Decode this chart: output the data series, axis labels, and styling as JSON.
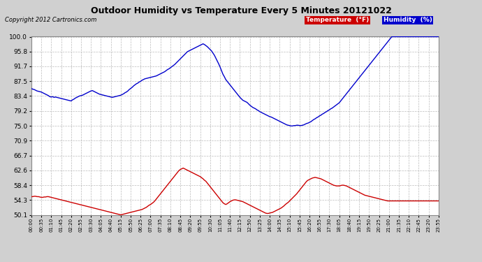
{
  "title": "Outdoor Humidity vs Temperature Every 5 Minutes 20121022",
  "copyright": "Copyright 2012 Cartronics.com",
  "legend_temp": "Temperature  (°F)",
  "legend_hum": "Humidity  (%)",
  "bg_color": "#d0d0d0",
  "plot_bg_color": "#ffffff",
  "grid_color": "#bbbbbb",
  "temp_color": "#cc0000",
  "hum_color": "#0000cc",
  "ylim_min": 50.1,
  "ylim_max": 100.0,
  "yticks": [
    50.1,
    54.3,
    58.4,
    62.6,
    66.7,
    70.9,
    75.0,
    79.2,
    83.4,
    87.5,
    91.7,
    95.8,
    100.0
  ],
  "num_points": 288,
  "xtick_labels": [
    "00:00",
    "00:35",
    "01:10",
    "01:45",
    "02:20",
    "02:55",
    "03:30",
    "04:05",
    "04:40",
    "05:15",
    "05:50",
    "06:25",
    "07:00",
    "07:35",
    "08:10",
    "08:45",
    "09:20",
    "09:55",
    "10:30",
    "11:05",
    "11:40",
    "12:15",
    "12:50",
    "13:25",
    "14:00",
    "14:35",
    "15:10",
    "15:45",
    "16:20",
    "16:55",
    "17:30",
    "18:05",
    "18:40",
    "19:15",
    "19:50",
    "20:25",
    "21:00",
    "21:35",
    "22:10",
    "22:45",
    "23:20",
    "23:55"
  ],
  "humidity_data": [
    85.5,
    85.3,
    85.2,
    85.0,
    84.8,
    84.7,
    84.6,
    84.5,
    84.3,
    84.1,
    83.9,
    83.7,
    83.5,
    83.2,
    83.1,
    83.2,
    83.0,
    83.1,
    83.0,
    82.9,
    82.8,
    82.7,
    82.6,
    82.5,
    82.4,
    82.3,
    82.2,
    82.1,
    82.0,
    82.3,
    82.5,
    82.8,
    83.0,
    83.2,
    83.4,
    83.5,
    83.6,
    83.8,
    84.0,
    84.2,
    84.4,
    84.6,
    84.8,
    84.9,
    84.7,
    84.5,
    84.3,
    84.1,
    83.9,
    83.8,
    83.7,
    83.6,
    83.5,
    83.4,
    83.3,
    83.2,
    83.1,
    83.0,
    83.1,
    83.2,
    83.3,
    83.4,
    83.5,
    83.6,
    83.8,
    84.0,
    84.3,
    84.5,
    84.8,
    85.2,
    85.5,
    85.8,
    86.2,
    86.5,
    86.8,
    87.0,
    87.3,
    87.5,
    87.8,
    88.0,
    88.2,
    88.3,
    88.4,
    88.5,
    88.6,
    88.7,
    88.8,
    88.9,
    89.0,
    89.2,
    89.4,
    89.6,
    89.8,
    90.0,
    90.2,
    90.5,
    90.8,
    91.0,
    91.3,
    91.6,
    91.9,
    92.2,
    92.6,
    93.0,
    93.4,
    93.8,
    94.2,
    94.6,
    95.0,
    95.4,
    95.8,
    96.0,
    96.2,
    96.4,
    96.6,
    96.8,
    97.0,
    97.2,
    97.4,
    97.6,
    97.8,
    98.0,
    97.8,
    97.5,
    97.2,
    96.8,
    96.4,
    96.0,
    95.4,
    94.8,
    94.0,
    93.2,
    92.4,
    91.5,
    90.5,
    89.5,
    88.8,
    88.0,
    87.5,
    87.0,
    86.5,
    86.0,
    85.5,
    85.0,
    84.5,
    84.0,
    83.5,
    83.0,
    82.6,
    82.2,
    82.0,
    81.8,
    81.6,
    81.2,
    80.8,
    80.5,
    80.2,
    80.0,
    79.8,
    79.5,
    79.3,
    79.0,
    78.8,
    78.6,
    78.4,
    78.2,
    78.0,
    77.8,
    77.6,
    77.5,
    77.3,
    77.1,
    76.9,
    76.7,
    76.5,
    76.3,
    76.1,
    75.9,
    75.7,
    75.5,
    75.3,
    75.2,
    75.1,
    75.0,
    75.0,
    75.1,
    75.1,
    75.2,
    75.2,
    75.1,
    75.1,
    75.2,
    75.3,
    75.5,
    75.7,
    75.8,
    76.0,
    76.2,
    76.5,
    76.8,
    77.0,
    77.3,
    77.5,
    77.8,
    78.0,
    78.3,
    78.5,
    78.8,
    79.0,
    79.3,
    79.5,
    79.8,
    80.0,
    80.3,
    80.6,
    80.9,
    81.2,
    81.5,
    82.0,
    82.5,
    83.0,
    83.5,
    84.0,
    84.5,
    85.0,
    85.5,
    86.0,
    86.5,
    87.0,
    87.5,
    88.0,
    88.5,
    89.0,
    89.5,
    90.0,
    90.5,
    91.0,
    91.5,
    92.0,
    92.5,
    93.0,
    93.5,
    94.0,
    94.5,
    95.0,
    95.5,
    96.0,
    96.5,
    97.0,
    97.5,
    98.0,
    98.5,
    99.0,
    99.5,
    100.0,
    100.0,
    100.0,
    100.0,
    100.0,
    100.0,
    100.0,
    100.0,
    100.0,
    100.0,
    100.0,
    100.0,
    100.0,
    100.0,
    100.0,
    100.0,
    100.0,
    100.0,
    100.0,
    100.0,
    100.0,
    100.0,
    100.0,
    100.0,
    100.0,
    100.0,
    100.0,
    100.0,
    100.0,
    100.0,
    100.0,
    100.0,
    100.0,
    100.0
  ],
  "temp_data": [
    55.2,
    55.2,
    55.3,
    55.3,
    55.2,
    55.2,
    55.1,
    55.0,
    55.0,
    55.1,
    55.1,
    55.2,
    55.2,
    55.1,
    55.0,
    54.9,
    54.8,
    54.7,
    54.6,
    54.5,
    54.4,
    54.3,
    54.2,
    54.1,
    54.0,
    53.9,
    53.8,
    53.7,
    53.6,
    53.5,
    53.4,
    53.3,
    53.2,
    53.1,
    53.0,
    52.9,
    52.8,
    52.7,
    52.6,
    52.5,
    52.4,
    52.3,
    52.2,
    52.1,
    52.0,
    51.9,
    51.8,
    51.7,
    51.6,
    51.5,
    51.4,
    51.3,
    51.2,
    51.1,
    51.0,
    50.9,
    50.8,
    50.7,
    50.6,
    50.5,
    50.4,
    50.3,
    50.2,
    50.1,
    50.2,
    50.3,
    50.4,
    50.5,
    50.6,
    50.7,
    50.8,
    50.9,
    51.0,
    51.1,
    51.2,
    51.3,
    51.4,
    51.5,
    51.6,
    51.8,
    52.0,
    52.2,
    52.5,
    52.8,
    53.0,
    53.3,
    53.6,
    54.0,
    54.5,
    55.0,
    55.5,
    56.0,
    56.5,
    57.0,
    57.5,
    58.0,
    58.5,
    59.0,
    59.5,
    60.0,
    60.5,
    61.0,
    61.5,
    62.0,
    62.5,
    62.8,
    63.0,
    63.2,
    63.0,
    62.8,
    62.6,
    62.4,
    62.2,
    62.0,
    61.8,
    61.6,
    61.4,
    61.2,
    61.0,
    60.8,
    60.5,
    60.2,
    59.8,
    59.5,
    59.0,
    58.5,
    58.0,
    57.5,
    57.0,
    56.5,
    56.0,
    55.5,
    55.0,
    54.5,
    54.0,
    53.5,
    53.2,
    53.0,
    53.2,
    53.5,
    53.8,
    54.0,
    54.2,
    54.3,
    54.3,
    54.2,
    54.1,
    54.0,
    53.9,
    53.8,
    53.6,
    53.4,
    53.2,
    53.0,
    52.8,
    52.6,
    52.4,
    52.2,
    52.0,
    51.8,
    51.6,
    51.4,
    51.2,
    51.0,
    50.8,
    50.6,
    50.5,
    50.5,
    50.6,
    50.7,
    50.8,
    51.0,
    51.2,
    51.4,
    51.6,
    51.8,
    52.0,
    52.3,
    52.6,
    53.0,
    53.3,
    53.6,
    54.0,
    54.4,
    54.8,
    55.2,
    55.6,
    56.0,
    56.5,
    57.0,
    57.5,
    58.0,
    58.5,
    59.0,
    59.5,
    59.8,
    60.0,
    60.2,
    60.4,
    60.5,
    60.6,
    60.5,
    60.4,
    60.3,
    60.2,
    60.0,
    59.8,
    59.6,
    59.4,
    59.2,
    59.0,
    58.8,
    58.6,
    58.4,
    58.3,
    58.2,
    58.2,
    58.2,
    58.3,
    58.4,
    58.4,
    58.3,
    58.2,
    58.0,
    57.8,
    57.6,
    57.4,
    57.2,
    57.0,
    56.8,
    56.6,
    56.4,
    56.2,
    56.0,
    55.8,
    55.6,
    55.5,
    55.4,
    55.3,
    55.2,
    55.1,
    55.0,
    54.9,
    54.8,
    54.7,
    54.6,
    54.5,
    54.4,
    54.3,
    54.2,
    54.1,
    54.0,
    54.0,
    54.0,
    54.0,
    54.0,
    54.0,
    54.0,
    54.0,
    54.0,
    54.0,
    54.0,
    54.0,
    54.0,
    54.0,
    54.0,
    54.0,
    54.0,
    54.0,
    54.0,
    54.0,
    54.0,
    54.0,
    54.0,
    54.0,
    54.0,
    54.0,
    54.0,
    54.0,
    54.0,
    54.0,
    54.0,
    54.0,
    54.0,
    54.0,
    54.0,
    54.0,
    54.0
  ]
}
